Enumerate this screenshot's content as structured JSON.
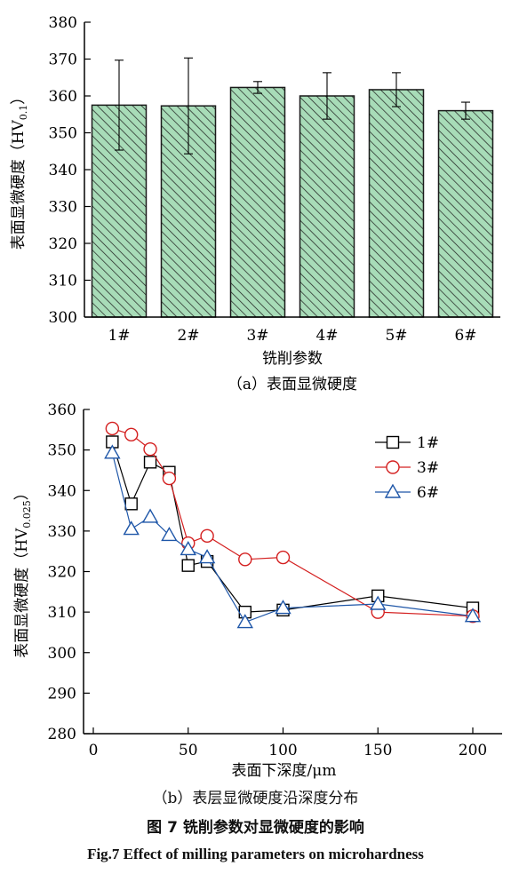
{
  "colors": {
    "bar_fill": "#a8dcb8",
    "bar_stroke": "#1a1a1a",
    "series_1": "#000000",
    "series_3": "#d42020",
    "series_6": "#1e56a8"
  },
  "chart_data": [
    {
      "id": "a",
      "type": "bar",
      "categories": [
        "1#",
        "2#",
        "3#",
        "4#",
        "5#",
        "6#"
      ],
      "values": [
        357.5,
        357.3,
        362.3,
        360.0,
        361.7,
        356.0
      ],
      "errors": [
        12.2,
        13.0,
        1.6,
        6.3,
        4.6,
        2.3
      ],
      "ylim": [
        300,
        380
      ],
      "yticks": [
        300,
        310,
        320,
        330,
        340,
        350,
        360,
        370,
        380
      ],
      "ylabel_main": "表面显微硬度（HV",
      "ylabel_sub": "0.1",
      "ylabel_end": "）",
      "xlabel": "铣削参数",
      "subcaption": "（a）表面显微硬度",
      "hatch": "diagonal",
      "grid": false
    },
    {
      "id": "b",
      "type": "line",
      "xlim": [
        0,
        200
      ],
      "ylim": [
        280,
        360
      ],
      "xticks": [
        0,
        50,
        100,
        150,
        200
      ],
      "yticks": [
        280,
        290,
        300,
        310,
        320,
        330,
        340,
        350,
        360
      ],
      "ylabel_main": "表面显微硬度（HV",
      "ylabel_sub": "0.025",
      "ylabel_end": "）",
      "xlabel": "表面下深度/μm",
      "legend_position": "top-right",
      "grid": false,
      "series": [
        {
          "name": "1#",
          "marker": "square",
          "color_key": "series_1",
          "x": [
            10,
            20,
            30,
            40,
            50,
            60,
            80,
            100,
            150,
            200
          ],
          "y": [
            352,
            336.7,
            347,
            344.5,
            321.5,
            322.5,
            310,
            310.5,
            314,
            311
          ]
        },
        {
          "name": "3#",
          "marker": "circle",
          "color_key": "series_3",
          "x": [
            10,
            20,
            30,
            40,
            50,
            60,
            80,
            100,
            150,
            200
          ],
          "y": [
            355.3,
            353.8,
            350.2,
            343,
            327,
            328.8,
            323,
            323.5,
            310,
            309
          ]
        },
        {
          "name": "6#",
          "marker": "triangle",
          "color_key": "series_6",
          "x": [
            10,
            20,
            30,
            40,
            50,
            60,
            80,
            100,
            150,
            200
          ],
          "y": [
            349.3,
            330.5,
            333.5,
            329,
            325.5,
            323.5,
            307.5,
            311,
            312,
            309
          ]
        }
      ]
    }
  ],
  "captions": {
    "b_subcaption": "（b）表层显微硬度沿深度分布",
    "figure_zh": "图 7    铣削参数对显微硬度的影响",
    "figure_en": "Fig.7    Effect of milling parameters on microhardness"
  }
}
